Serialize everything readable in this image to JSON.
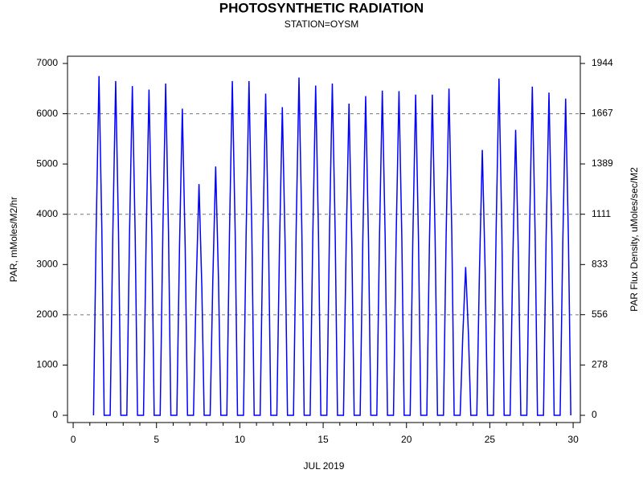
{
  "chart_data": {
    "type": "line",
    "title": "PHOTOSYNTHETIC RADIATION",
    "subtitle": "STATION=OYSM",
    "x_label": "JUL 2019",
    "y_label": "PAR, mMoles/M2/hr",
    "y2_label": "PAR Flux Density, uMoles/sec/M2",
    "xlim": [
      -0.34,
      30.43
    ],
    "xticks": [
      0,
      5,
      10,
      15,
      20,
      25,
      30
    ],
    "xminorticks": [
      1,
      2,
      3,
      4,
      6,
      7,
      8,
      9,
      11,
      12,
      13,
      14,
      16,
      17,
      18,
      19,
      21,
      22,
      23,
      24,
      26,
      27,
      28,
      29
    ],
    "ylim": [
      -144,
      7144
    ],
    "yticks": [
      0,
      1000,
      2000,
      3000,
      4000,
      5000,
      6000,
      7000
    ],
    "y2lim": [
      -40,
      1984
    ],
    "y2ticks": [
      0,
      278,
      556,
      833,
      1111,
      1389,
      1667,
      1944
    ],
    "ygrid": [
      2000,
      4000,
      6000
    ],
    "series": [
      {
        "color": "#0000ff",
        "x": [
          1.22,
          1.38,
          1.55,
          1.72,
          1.86,
          2.22,
          2.38,
          2.55,
          2.72,
          2.86,
          3.22,
          3.38,
          3.55,
          3.72,
          3.86,
          4.22,
          4.38,
          4.55,
          4.72,
          4.86,
          5.22,
          5.38,
          5.55,
          5.72,
          5.86,
          6.22,
          6.38,
          6.55,
          6.72,
          6.86,
          7.22,
          7.38,
          7.55,
          7.72,
          7.86,
          8.22,
          8.38,
          8.55,
          8.72,
          8.86,
          9.22,
          9.38,
          9.55,
          9.72,
          9.86,
          10.22,
          10.38,
          10.55,
          10.72,
          10.86,
          11.22,
          11.38,
          11.55,
          11.72,
          11.86,
          12.22,
          12.38,
          12.55,
          12.72,
          12.86,
          13.22,
          13.38,
          13.55,
          13.72,
          13.86,
          14.22,
          14.38,
          14.55,
          14.72,
          14.86,
          15.22,
          15.38,
          15.55,
          15.72,
          15.86,
          16.22,
          16.38,
          16.55,
          16.72,
          16.86,
          17.22,
          17.38,
          17.55,
          17.72,
          17.86,
          18.22,
          18.38,
          18.55,
          18.72,
          18.86,
          19.22,
          19.38,
          19.55,
          19.72,
          19.86,
          20.22,
          20.38,
          20.55,
          20.72,
          20.86,
          21.22,
          21.38,
          21.55,
          21.72,
          21.86,
          22.22,
          22.38,
          22.55,
          22.72,
          22.86,
          23.22,
          23.38,
          23.55,
          23.72,
          23.86,
          24.22,
          24.38,
          24.55,
          24.72,
          24.86,
          25.22,
          25.38,
          25.55,
          25.72,
          25.86,
          26.22,
          26.38,
          26.55,
          26.72,
          26.86,
          27.22,
          27.38,
          27.55,
          27.72,
          27.86,
          28.22,
          28.38,
          28.55,
          28.72,
          28.86,
          29.22,
          29.38,
          29.55,
          29.72,
          29.86
        ],
        "values": [
          0,
          3700,
          6750,
          3700,
          0,
          0,
          3650,
          6650,
          3650,
          0,
          0,
          3600,
          6550,
          3600,
          0,
          0,
          3550,
          6480,
          3550,
          0,
          0,
          3650,
          6600,
          3650,
          0,
          0,
          3350,
          6100,
          3350,
          0,
          0,
          2550,
          4600,
          2550,
          0,
          0,
          2700,
          4950,
          2700,
          0,
          0,
          3650,
          6650,
          3650,
          0,
          0,
          3650,
          6650,
          3650,
          0,
          0,
          3500,
          6400,
          3500,
          0,
          0,
          3350,
          6130,
          3350,
          0,
          0,
          3700,
          6720,
          3700,
          0,
          0,
          3600,
          6560,
          3600,
          0,
          0,
          3650,
          6600,
          3650,
          0,
          0,
          3400,
          6200,
          3400,
          0,
          0,
          3500,
          6350,
          3500,
          0,
          0,
          3550,
          6460,
          3550,
          0,
          0,
          3550,
          6450,
          3550,
          0,
          0,
          3500,
          6380,
          3500,
          0,
          0,
          3500,
          6380,
          3500,
          0,
          0,
          3600,
          6500,
          3600,
          0,
          0,
          1600,
          2950,
          1600,
          0,
          0,
          2900,
          5280,
          2900,
          0,
          0,
          3700,
          6700,
          3700,
          0,
          0,
          3100,
          5680,
          3100,
          0,
          0,
          3600,
          6540,
          3600,
          0,
          0,
          3550,
          6420,
          3550,
          0,
          0,
          3450,
          6300,
          3450,
          0
        ]
      }
    ]
  }
}
